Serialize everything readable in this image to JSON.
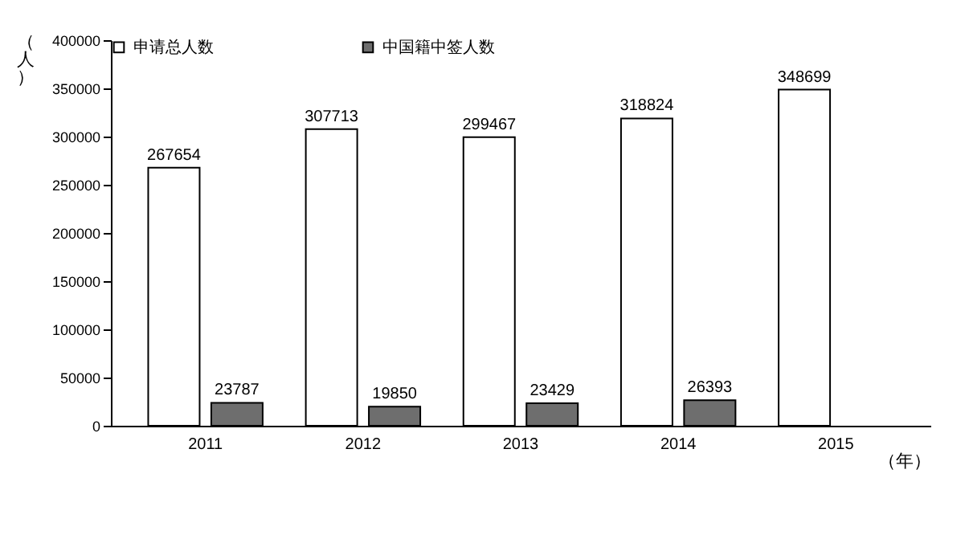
{
  "chart_data": {
    "type": "bar",
    "ylabel": "（人）",
    "xlabel": "（年）",
    "categories": [
      "2011",
      "2012",
      "2013",
      "2014",
      "2015"
    ],
    "series": [
      {
        "name": "申请总人数",
        "color": "#ffffff",
        "values": [
          267654,
          307713,
          299467,
          318824,
          348699
        ]
      },
      {
        "name": "中国籍中签人数",
        "color": "#6e6e6e",
        "values": [
          23787,
          19850,
          23429,
          26393,
          null
        ]
      }
    ],
    "ylim": [
      0,
      400000
    ],
    "yticks": [
      0,
      50000,
      100000,
      150000,
      200000,
      250000,
      300000,
      350000,
      400000
    ],
    "data_labels": true,
    "grid": false,
    "legend": "top"
  }
}
